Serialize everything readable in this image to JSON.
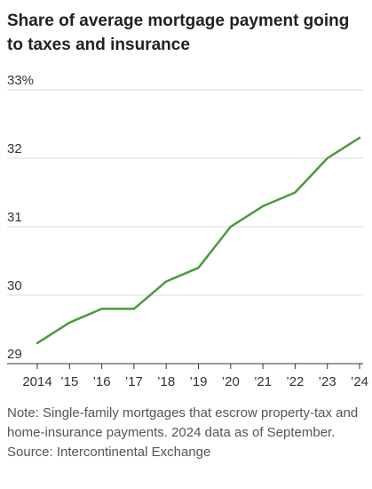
{
  "chart_data": {
    "type": "line",
    "title": "Share of average mortgage payment going to taxes and insurance",
    "x": [
      "2014",
      "’15",
      "’16",
      "’17",
      "’18",
      "’19",
      "’20",
      "’21",
      "’22",
      "’23",
      "’24"
    ],
    "series": [
      {
        "values": [
          29.3,
          29.6,
          29.8,
          29.8,
          30.2,
          30.4,
          31.0,
          31.3,
          31.5,
          32.0,
          32.3
        ]
      }
    ],
    "yticks": [
      "29",
      "30",
      "31",
      "32",
      "33%"
    ],
    "ytick_values": [
      29,
      30,
      31,
      32,
      33
    ],
    "ylim": [
      29,
      33
    ],
    "grid": true,
    "line_color": "#4a9a3c",
    "grid_color": "#d9d9d9",
    "axis_color": "#333333",
    "note": "Note: Single-family mortgages that escrow property-tax and home-insurance payments. 2024 data as of September.",
    "source": "Source: Intercontinental Exchange"
  }
}
